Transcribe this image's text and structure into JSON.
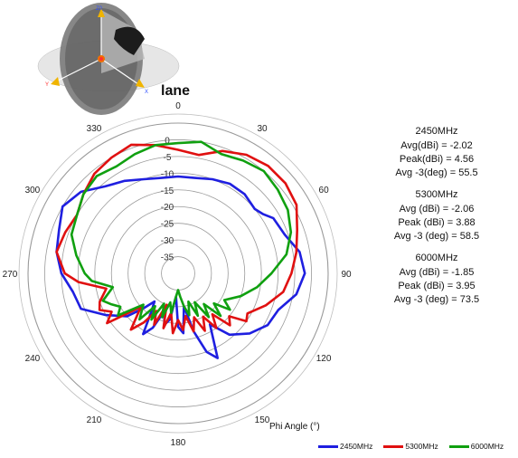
{
  "chart_data": {
    "type": "polar-line",
    "title": "lane",
    "xlabel": "Phi Angle (°)",
    "angle_ticks": [
      0,
      30,
      60,
      90,
      120,
      150,
      180,
      210,
      240,
      270,
      300,
      330
    ],
    "radial_ticks": [
      "0",
      "-5",
      "-10",
      "-15",
      "-20",
      "-25",
      "-30",
      "-35"
    ],
    "rlim": [
      -40,
      5
    ],
    "series": [
      {
        "name": "2450MHz",
        "color": "#1f1fe0",
        "points": [
          [
            0,
            -11
          ],
          [
            10,
            -11
          ],
          [
            20,
            -10
          ],
          [
            30,
            -9
          ],
          [
            40,
            -9
          ],
          [
            50,
            -10
          ],
          [
            55,
            -9
          ],
          [
            60,
            -7
          ],
          [
            70,
            -6
          ],
          [
            80,
            -3
          ],
          [
            90,
            -2
          ],
          [
            100,
            -4
          ],
          [
            110,
            -8
          ],
          [
            120,
            -9
          ],
          [
            130,
            -12
          ],
          [
            140,
            -16
          ],
          [
            148,
            -22
          ],
          [
            155,
            -12
          ],
          [
            160,
            -15
          ],
          [
            165,
            -22
          ],
          [
            170,
            -30
          ],
          [
            175,
            -22
          ],
          [
            180,
            -24
          ],
          [
            185,
            -33
          ],
          [
            190,
            -26
          ],
          [
            195,
            -24
          ],
          [
            200,
            -28
          ],
          [
            205,
            -22
          ],
          [
            210,
            -19
          ],
          [
            215,
            -26
          ],
          [
            220,
            -29
          ],
          [
            225,
            -25
          ],
          [
            230,
            -20
          ],
          [
            240,
            -15
          ],
          [
            250,
            -9
          ],
          [
            260,
            -8
          ],
          [
            270,
            -5
          ],
          [
            280,
            -3
          ],
          [
            290,
            -2
          ],
          [
            300,
            0
          ],
          [
            310,
            -2
          ],
          [
            320,
            -6
          ],
          [
            330,
            -8
          ],
          [
            340,
            -10
          ],
          [
            350,
            -11
          ],
          [
            360,
            -11
          ]
        ]
      },
      {
        "name": "5300MHz",
        "color": "#e01010",
        "points": [
          [
            0,
            -3
          ],
          [
            10,
            -4
          ],
          [
            20,
            -1
          ],
          [
            30,
            1
          ],
          [
            40,
            2
          ],
          [
            50,
            2
          ],
          [
            60,
            1
          ],
          [
            70,
            -2
          ],
          [
            80,
            -4
          ],
          [
            90,
            -6
          ],
          [
            100,
            -8
          ],
          [
            110,
            -12
          ],
          [
            120,
            -16
          ],
          [
            125,
            -15
          ],
          [
            130,
            -20
          ],
          [
            135,
            -18
          ],
          [
            140,
            -24
          ],
          [
            145,
            -20
          ],
          [
            150,
            -25
          ],
          [
            155,
            -21
          ],
          [
            160,
            -26
          ],
          [
            165,
            -22
          ],
          [
            170,
            -27
          ],
          [
            175,
            -23
          ],
          [
            180,
            -26
          ],
          [
            185,
            -22
          ],
          [
            190,
            -28
          ],
          [
            195,
            -23
          ],
          [
            200,
            -30
          ],
          [
            205,
            -23
          ],
          [
            210,
            -27
          ],
          [
            215,
            -22
          ],
          [
            220,
            -18
          ],
          [
            228,
            -25
          ],
          [
            235,
            -14
          ],
          [
            240,
            -17
          ],
          [
            245,
            -14
          ],
          [
            250,
            -15
          ],
          [
            258,
            -18
          ],
          [
            265,
            -10
          ],
          [
            270,
            -6
          ],
          [
            280,
            -3
          ],
          [
            290,
            -4
          ],
          [
            300,
            -5
          ],
          [
            310,
            -3
          ],
          [
            320,
            -1
          ],
          [
            330,
            0
          ],
          [
            340,
            1
          ],
          [
            350,
            -1
          ],
          [
            360,
            -3
          ]
        ]
      },
      {
        "name": "6000MHz",
        "color": "#10a010",
        "points": [
          [
            0,
            -1
          ],
          [
            10,
            0
          ],
          [
            20,
            -2
          ],
          [
            30,
            -1
          ],
          [
            40,
            0
          ],
          [
            50,
            -1
          ],
          [
            60,
            -2
          ],
          [
            70,
            -4
          ],
          [
            80,
            -7
          ],
          [
            90,
            -12
          ],
          [
            100,
            -16
          ],
          [
            110,
            -20
          ],
          [
            120,
            -24
          ],
          [
            125,
            -21
          ],
          [
            130,
            -26
          ],
          [
            135,
            -22
          ],
          [
            140,
            -28
          ],
          [
            145,
            -24
          ],
          [
            150,
            -30
          ],
          [
            155,
            -26
          ],
          [
            160,
            -31
          ],
          [
            165,
            -27
          ],
          [
            170,
            -30
          ],
          [
            175,
            -33
          ],
          [
            180,
            -35
          ],
          [
            185,
            -33
          ],
          [
            190,
            -28
          ],
          [
            195,
            -31
          ],
          [
            200,
            -26
          ],
          [
            205,
            -30
          ],
          [
            210,
            -24
          ],
          [
            215,
            -28
          ],
          [
            220,
            -22
          ],
          [
            228,
            -26
          ],
          [
            235,
            -18
          ],
          [
            240,
            -20
          ],
          [
            245,
            -18
          ],
          [
            250,
            -16
          ],
          [
            258,
            -20
          ],
          [
            265,
            -14
          ],
          [
            270,
            -12
          ],
          [
            280,
            -9
          ],
          [
            290,
            -6
          ],
          [
            300,
            -5
          ],
          [
            310,
            -3
          ],
          [
            320,
            -2
          ],
          [
            330,
            -3
          ],
          [
            340,
            -2
          ],
          [
            350,
            -1
          ],
          [
            360,
            -1
          ]
        ]
      }
    ],
    "annotations": [
      {
        "header": "2450MHz",
        "lines": [
          "Avg(dBi) = -2.02",
          "Peak(dBi) = 4.56",
          "Avg -3(deg) = 55.5"
        ]
      },
      {
        "header": "5300MHz",
        "lines": [
          "Avg (dBi) =  -2.06",
          "Peak (dBi) =  3.88",
          "Avg -3 (deg) =  58.5"
        ]
      },
      {
        "header": "6000MHz",
        "lines": [
          "Avg (dBi) = -1.85",
          "Peak (dBi) = 3.95",
          "Avg -3 (deg) = 73.5"
        ]
      }
    ],
    "legend_position": "bottom-right",
    "grid": true
  },
  "model": {
    "axis_labels": [
      "Z0",
      "Y",
      "X"
    ]
  }
}
